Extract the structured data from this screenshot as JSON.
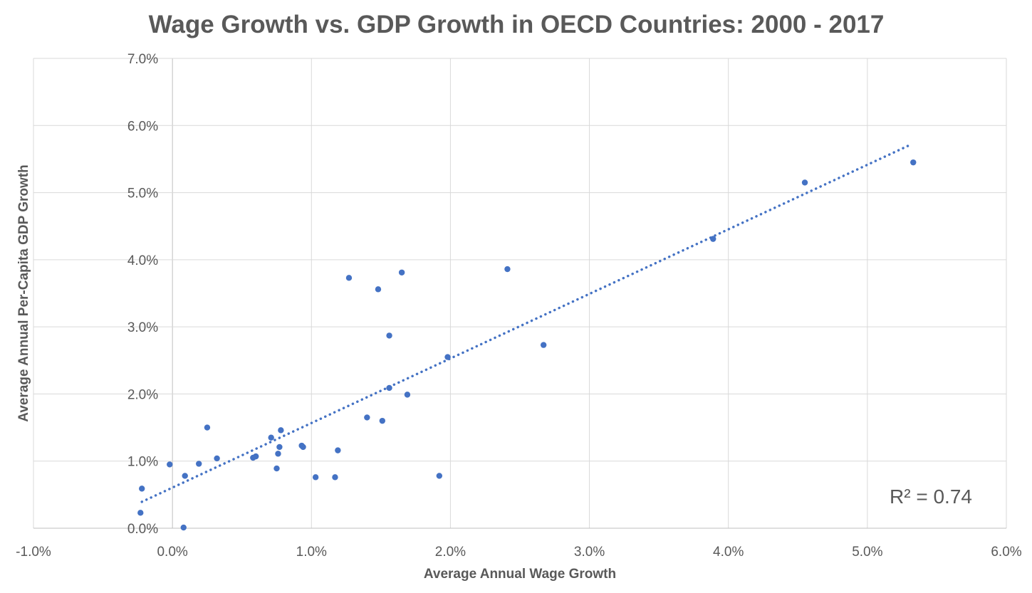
{
  "chart_data": {
    "type": "scatter",
    "title": "Wage Growth vs. GDP Growth in OECD Countries: 2000 - 2017",
    "xlabel": "Average Annual Wage Growth",
    "ylabel": "Average Annual Per-Capita GDP Growth",
    "xlim": [
      -0.01,
      0.06
    ],
    "ylim": [
      0.0,
      0.07
    ],
    "x_ticks": [
      -0.01,
      0.0,
      0.01,
      0.02,
      0.03,
      0.04,
      0.05,
      0.06
    ],
    "y_ticks": [
      0.0,
      0.01,
      0.02,
      0.03,
      0.04,
      0.05,
      0.06,
      0.07
    ],
    "x_tick_labels": [
      "-1.0%",
      "0.0%",
      "1.0%",
      "2.0%",
      "3.0%",
      "4.0%",
      "5.0%",
      "6.0%"
    ],
    "y_tick_labels": [
      "0.0%",
      "1.0%",
      "2.0%",
      "3.0%",
      "4.0%",
      "5.0%",
      "6.0%",
      "7.0%"
    ],
    "grid": true,
    "legend": "none",
    "marker_color": "#4472C4",
    "points": [
      {
        "x": 0.0533,
        "y": 0.0545
      },
      {
        "x": 0.0455,
        "y": 0.0515
      },
      {
        "x": 0.0389,
        "y": 0.0431
      },
      {
        "x": 0.0267,
        "y": 0.0273
      },
      {
        "x": 0.0241,
        "y": 0.0386
      },
      {
        "x": 0.0198,
        "y": 0.0255
      },
      {
        "x": 0.0192,
        "y": 0.0078
      },
      {
        "x": 0.0169,
        "y": 0.0199
      },
      {
        "x": 0.0165,
        "y": 0.0381
      },
      {
        "x": 0.0156,
        "y": 0.0287
      },
      {
        "x": 0.0156,
        "y": 0.0209
      },
      {
        "x": 0.0151,
        "y": 0.016
      },
      {
        "x": 0.0148,
        "y": 0.0356
      },
      {
        "x": 0.014,
        "y": 0.0165
      },
      {
        "x": 0.0127,
        "y": 0.0373
      },
      {
        "x": 0.0119,
        "y": 0.0116
      },
      {
        "x": 0.0117,
        "y": 0.0076
      },
      {
        "x": 0.0103,
        "y": 0.0076
      },
      {
        "x": 0.0094,
        "y": 0.0121
      },
      {
        "x": 0.0093,
        "y": 0.0123
      },
      {
        "x": 0.0078,
        "y": 0.0146
      },
      {
        "x": 0.0077,
        "y": 0.0121
      },
      {
        "x": 0.0076,
        "y": 0.0111
      },
      {
        "x": 0.0075,
        "y": 0.0089
      },
      {
        "x": 0.0071,
        "y": 0.0135
      },
      {
        "x": 0.006,
        "y": 0.0107
      },
      {
        "x": 0.0058,
        "y": 0.0105
      },
      {
        "x": 0.0032,
        "y": 0.0104
      },
      {
        "x": 0.0025,
        "y": 0.015
      },
      {
        "x": 0.0019,
        "y": 0.0096
      },
      {
        "x": 0.0009,
        "y": 0.0078
      },
      {
        "x": 0.0008,
        "y": 0.0001
      },
      {
        "x": -0.0002,
        "y": 0.0095
      },
      {
        "x": -0.0022,
        "y": 0.0059
      },
      {
        "x": -0.0023,
        "y": 0.0023
      }
    ],
    "trendline": {
      "type": "linear",
      "x_start": -0.0022,
      "x_end": 0.0532,
      "slope": 0.962,
      "intercept": 0.00605,
      "color": "#4472C4",
      "style": "dotted"
    },
    "annotation": "R² = 0.74"
  }
}
